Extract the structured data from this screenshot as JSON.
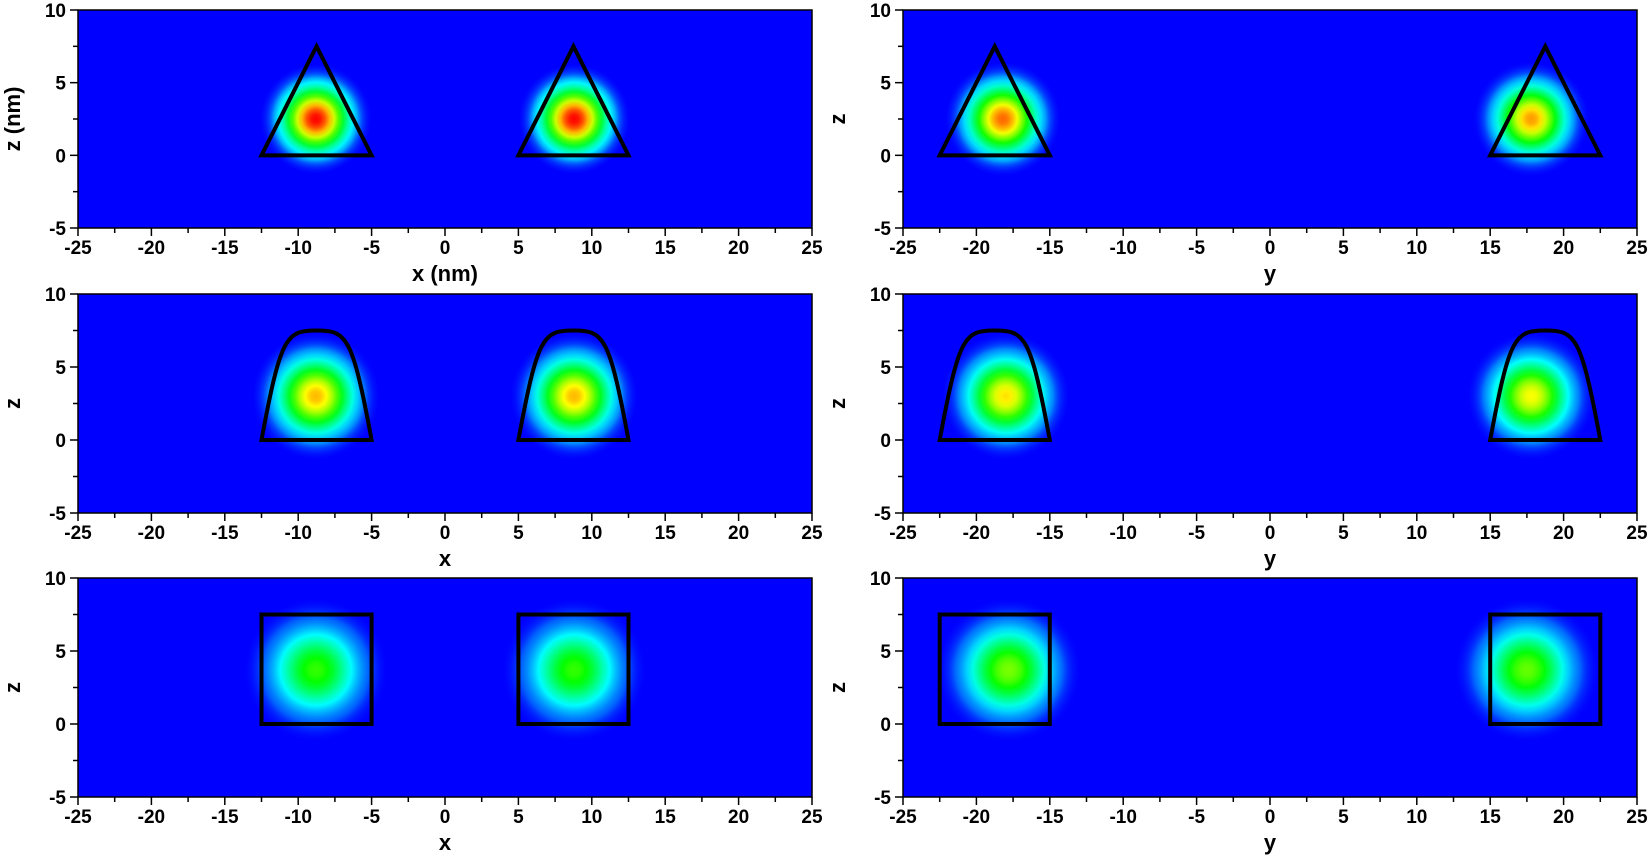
{
  "chart_data": [
    {
      "type": "heatmap",
      "panel": "row1-left",
      "xlabel": "x (nm)",
      "ylabel": "z (nm)",
      "xlim": [
        -25,
        25
      ],
      "ylim": [
        -5,
        10
      ],
      "xticks": [
        -25,
        -20,
        -15,
        -10,
        -5,
        0,
        5,
        10,
        15,
        20,
        25
      ],
      "yticks": [
        -5,
        0,
        5,
        10
      ],
      "colormap": [
        "#0000ff",
        "#00ffff",
        "#00ff00",
        "#ffff00",
        "#ff0000"
      ],
      "shape": "triangle",
      "outlines": [
        {
          "base_x": [
            -12.5,
            -5
          ],
          "base_z": 0,
          "apex": [
            -8.75,
            7.5
          ]
        },
        {
          "base_x": [
            5,
            12.5
          ],
          "base_z": 0,
          "apex": [
            8.75,
            7.5
          ]
        }
      ],
      "hotspots": [
        {
          "x": -8.8,
          "z": 2.5,
          "peak": 1.0,
          "spread": 2.8
        },
        {
          "x": 8.8,
          "z": 2.5,
          "peak": 1.0,
          "spread": 2.8
        }
      ]
    },
    {
      "type": "heatmap",
      "panel": "row1-right",
      "xlabel": "y",
      "ylabel": "z",
      "xlim": [
        -25,
        25
      ],
      "ylim": [
        -5,
        10
      ],
      "xticks": [
        -25,
        -20,
        -15,
        -10,
        -5,
        0,
        5,
        10,
        15,
        20,
        25
      ],
      "yticks": [
        -5,
        0,
        5,
        10
      ],
      "shape": "triangle",
      "outlines": [
        {
          "base_x": [
            -22.5,
            -15
          ],
          "base_z": 0,
          "apex": [
            -18.75,
            7.5
          ]
        },
        {
          "base_x": [
            15,
            22.5
          ],
          "base_z": 0,
          "apex": [
            18.75,
            7.5
          ]
        }
      ],
      "hotspots": [
        {
          "x": -18.2,
          "z": 2.5,
          "peak": 0.9,
          "spread": 2.9
        },
        {
          "x": 17.8,
          "z": 2.5,
          "peak": 0.85,
          "spread": 2.9
        }
      ]
    },
    {
      "type": "heatmap",
      "panel": "row2-left",
      "xlabel": "x",
      "ylabel": "z",
      "xlim": [
        -25,
        25
      ],
      "ylim": [
        -5,
        10
      ],
      "xticks": [
        -25,
        -20,
        -15,
        -10,
        -5,
        0,
        5,
        10,
        15,
        20,
        25
      ],
      "yticks": [
        -5,
        0,
        5,
        10
      ],
      "shape": "dome",
      "outlines": [
        {
          "base_x": [
            -12.5,
            -5
          ],
          "base_z": 0,
          "apex": [
            -8.75,
            7.5
          ]
        },
        {
          "base_x": [
            5,
            12.5
          ],
          "base_z": 0,
          "apex": [
            8.75,
            7.5
          ]
        }
      ],
      "hotspots": [
        {
          "x": -8.8,
          "z": 3.0,
          "peak": 0.82,
          "spread": 3.2
        },
        {
          "x": 8.8,
          "z": 3.0,
          "peak": 0.82,
          "spread": 3.2
        }
      ]
    },
    {
      "type": "heatmap",
      "panel": "row2-right",
      "xlabel": "y",
      "ylabel": "z",
      "xlim": [
        -25,
        25
      ],
      "ylim": [
        -5,
        10
      ],
      "xticks": [
        -25,
        -20,
        -15,
        -10,
        -5,
        0,
        5,
        10,
        15,
        20,
        25
      ],
      "yticks": [
        -5,
        0,
        5,
        10
      ],
      "shape": "dome",
      "outlines": [
        {
          "base_x": [
            -22.5,
            -15
          ],
          "base_z": 0,
          "apex": [
            -18.75,
            7.5
          ]
        },
        {
          "base_x": [
            15,
            22.5
          ],
          "base_z": 0,
          "apex": [
            18.75,
            7.5
          ]
        }
      ],
      "hotspots": [
        {
          "x": -18.0,
          "z": 3.0,
          "peak": 0.78,
          "spread": 3.2
        },
        {
          "x": 17.8,
          "z": 3.0,
          "peak": 0.75,
          "spread": 3.2
        }
      ]
    },
    {
      "type": "heatmap",
      "panel": "row3-left",
      "xlabel": "x",
      "ylabel": "z",
      "xlim": [
        -25,
        25
      ],
      "ylim": [
        -5,
        10
      ],
      "xticks": [
        -25,
        -20,
        -15,
        -10,
        -5,
        0,
        5,
        10,
        15,
        20,
        25
      ],
      "yticks": [
        -5,
        0,
        5,
        10
      ],
      "shape": "square",
      "outlines": [
        {
          "base_x": [
            -12.5,
            -5
          ],
          "base_z": 0,
          "apex": [
            -8.75,
            7.5
          ]
        },
        {
          "base_x": [
            5,
            12.5
          ],
          "base_z": 0,
          "apex": [
            8.75,
            7.5
          ]
        }
      ],
      "hotspots": [
        {
          "x": -8.8,
          "z": 3.7,
          "peak": 0.55,
          "spread": 3.6
        },
        {
          "x": 8.8,
          "z": 3.7,
          "peak": 0.55,
          "spread": 3.6
        }
      ]
    },
    {
      "type": "heatmap",
      "panel": "row3-right",
      "xlabel": "y",
      "ylabel": "z",
      "xlim": [
        -25,
        25
      ],
      "ylim": [
        -5,
        10
      ],
      "xticks": [
        -25,
        -20,
        -15,
        -10,
        -5,
        0,
        5,
        10,
        15,
        20,
        25
      ],
      "yticks": [
        -5,
        0,
        5,
        10
      ],
      "shape": "square",
      "outlines": [
        {
          "base_x": [
            -22.5,
            -15
          ],
          "base_z": 0,
          "apex": [
            -18.75,
            7.5
          ]
        },
        {
          "base_x": [
            15,
            22.5
          ],
          "base_z": 0,
          "apex": [
            18.75,
            7.5
          ]
        }
      ],
      "hotspots": [
        {
          "x": -17.8,
          "z": 3.7,
          "peak": 0.62,
          "spread": 3.6
        },
        {
          "x": 17.5,
          "z": 3.7,
          "peak": 0.6,
          "spread": 3.6
        }
      ]
    }
  ]
}
